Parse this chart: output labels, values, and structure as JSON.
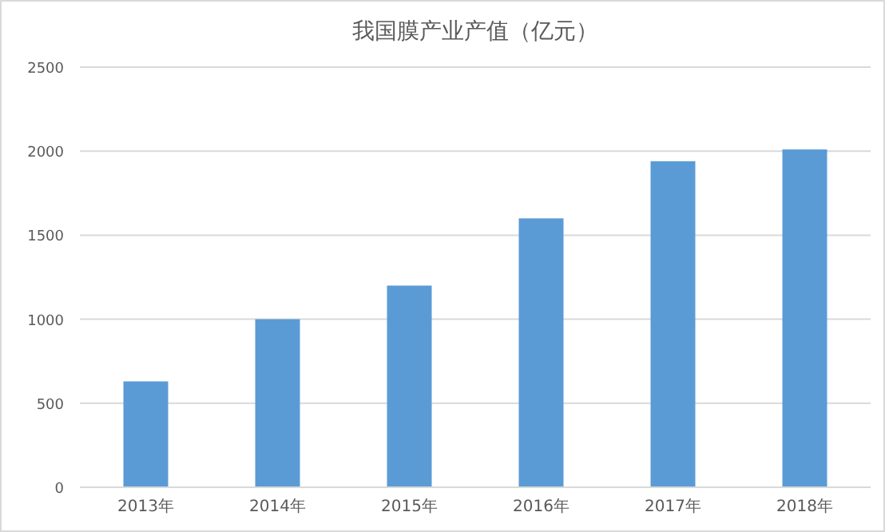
{
  "chart_data": {
    "type": "bar",
    "title": "我国膜产业产值（亿元）",
    "categories": [
      "2013年",
      "2014年",
      "2015年",
      "2016年",
      "2017年",
      "2018年"
    ],
    "values": [
      630,
      1000,
      1200,
      1600,
      1940,
      2010
    ],
    "color": "#5b9bd5",
    "ylim": [
      0,
      2500
    ],
    "yticks": [
      0,
      500,
      1000,
      1500,
      2000,
      2500
    ],
    "grid": "y"
  }
}
